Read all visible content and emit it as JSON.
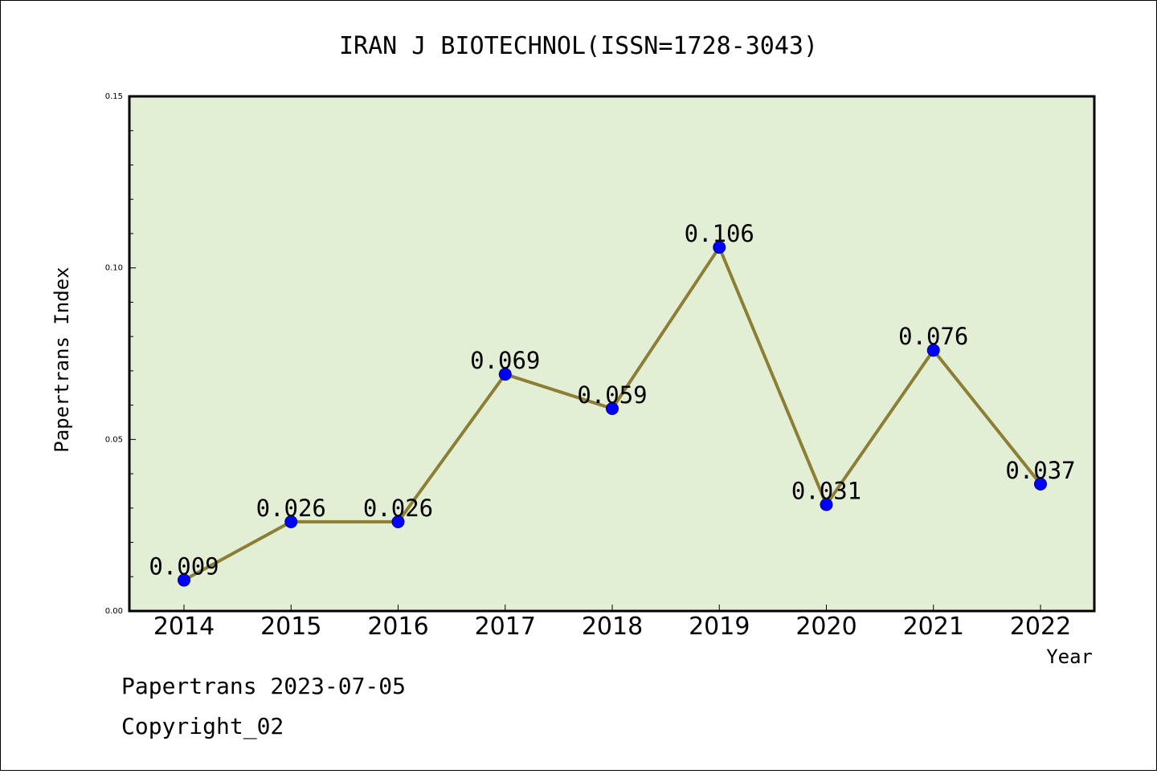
{
  "footer": {
    "line1": "Papertrans 2023-07-05",
    "line2": "Copyright_02"
  },
  "colors": {
    "plot_background": "#e2efd5",
    "line": "#8c7f35",
    "marker": "#0000ff",
    "axes": "#000000"
  },
  "chart_data": {
    "type": "line",
    "title": "IRAN J BIOTECHNOL(ISSN=1728-3043)",
    "xlabel": "Year",
    "ylabel": "Papertrans Index",
    "categories": [
      "2014",
      "2015",
      "2016",
      "2017",
      "2018",
      "2019",
      "2020",
      "2021",
      "2022"
    ],
    "values": [
      0.009,
      0.026,
      0.026,
      0.069,
      0.059,
      0.106,
      0.031,
      0.076,
      0.037
    ],
    "data_labels": [
      "0.009",
      "0.026",
      "0.026",
      "0.069",
      "0.059",
      "0.106",
      "0.031",
      "0.076",
      "0.037"
    ],
    "ylim": [
      0,
      0.15
    ],
    "yticks": [
      "0.00",
      "0.05",
      "0.10",
      "0.15"
    ],
    "ytick_values": [
      0,
      0.05,
      0.1,
      0.15
    ],
    "grid": false,
    "legend": "none"
  }
}
